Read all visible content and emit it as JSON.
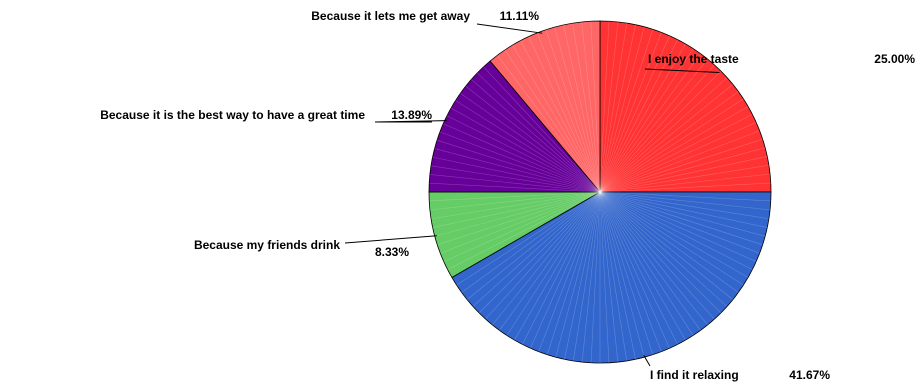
{
  "chart_data": {
    "type": "pie",
    "title": "",
    "slices": [
      {
        "label": "I enjoy the taste",
        "value": 25.0,
        "display": "25.00%",
        "color": "#ff3333"
      },
      {
        "label": "I find it relaxing",
        "value": 41.67,
        "display": "41.67%",
        "color": "#3366cc"
      },
      {
        "label": "Because my friends drink",
        "value": 8.33,
        "display": "8.33%",
        "color": "#66cc66"
      },
      {
        "label": "Because it is the best way to have a great time",
        "value": 13.89,
        "display": "13.89%",
        "color": "#660099"
      },
      {
        "label": "Because it lets me get away",
        "value": 11.11,
        "display": "11.11%",
        "color": "#ff6666"
      }
    ],
    "start_angle": "12 o'clock",
    "direction": "clockwise",
    "legend": "none",
    "labels": "outside with leader lines"
  }
}
